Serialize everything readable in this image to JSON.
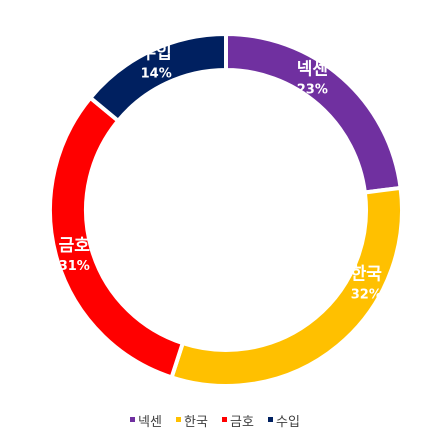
{
  "chart_data": {
    "type": "pie",
    "donut": true,
    "title": "",
    "labels": [
      "넥센",
      "한국",
      "금호",
      "수입"
    ],
    "values": [
      23,
      32,
      31,
      14
    ],
    "value_labels": [
      "23%",
      "32%",
      "31%",
      "14%"
    ],
    "colors": [
      "#7030a0",
      "#ffc000",
      "#ff0000",
      "#002060"
    ],
    "legend_position": "bottom",
    "legend": [
      {
        "name": "넥센",
        "color": "#7030a0"
      },
      {
        "name": "한국",
        "color": "#ffc000"
      },
      {
        "name": "금호",
        "color": "#ff0000"
      },
      {
        "name": "수입",
        "color": "#002060"
      }
    ]
  }
}
